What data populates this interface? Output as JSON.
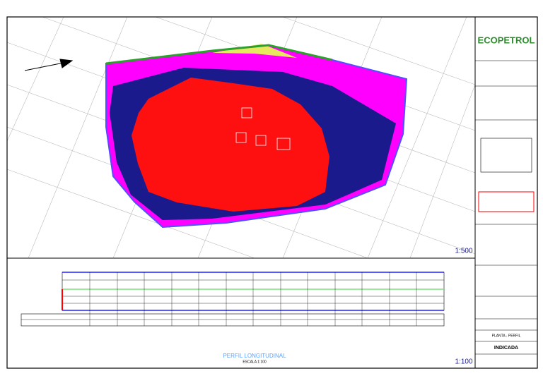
{
  "logo": "ECOPETROL",
  "plan": {
    "scale": "1:500"
  },
  "profile": {
    "title": "PERFIL LONGITUDINAL",
    "scale_note": "ESCALA 1:100",
    "scale": "1:100"
  },
  "title_block": {
    "sheet_name": "PLANTA - PERFIL",
    "scale": "INDICADA"
  }
}
